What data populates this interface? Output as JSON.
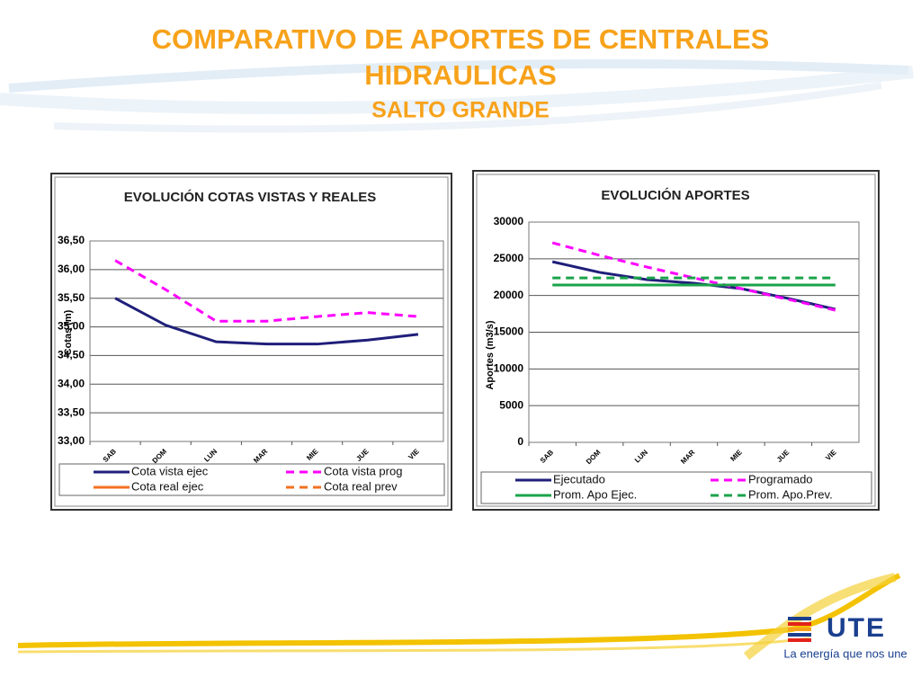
{
  "header": {
    "title_line1": "COMPARATIVO DE APORTES DE CENTRALES",
    "title_line2": "HIDRAULICAS",
    "subtitle": "SALTO GRANDE"
  },
  "chart_data": [
    {
      "type": "line",
      "title": "EVOLUCIÓN  COTAS VISTAS Y REALES",
      "y_label": "Cotas (m)",
      "categories": [
        "SAB",
        "DOM",
        "LUN",
        "MAR",
        "MIE",
        "JUE",
        "VIE"
      ],
      "ylim": [
        33,
        36.5
      ],
      "yticks": [
        {
          "value": 33,
          "label": "33,00"
        },
        {
          "value": 33.5,
          "label": "33,50"
        },
        {
          "value": 34,
          "label": "34,00"
        },
        {
          "value": 34.5,
          "label": "34,50"
        },
        {
          "value": 35,
          "label": "35,00"
        },
        {
          "value": 35.5,
          "label": "35,50"
        },
        {
          "value": 36,
          "label": "36,00"
        },
        {
          "value": 36.5,
          "label": "36,50"
        }
      ],
      "grid": true,
      "series": [
        {
          "name": "Cota vista ejec",
          "color": "#1f1f7a",
          "dashed": false,
          "values": [
            35.5,
            35.03,
            34.74,
            34.7,
            34.7,
            34.77,
            34.87
          ]
        },
        {
          "name": "Cota vista prog",
          "color": "#ff00ff",
          "dashed": true,
          "values": [
            36.16,
            35.65,
            35.1,
            35.1,
            35.18,
            35.25,
            35.18
          ]
        },
        {
          "name": "Cota real ejec",
          "color": "#f37021",
          "dashed": false,
          "values": [
            null,
            null,
            null,
            null,
            null,
            null,
            null
          ]
        },
        {
          "name": "Cota real prev",
          "color": "#f37021",
          "dashed": true,
          "values": [
            null,
            null,
            null,
            null,
            null,
            null,
            null
          ]
        }
      ]
    },
    {
      "type": "line",
      "title": "EVOLUCIÓN  APORTES",
      "y_label": "Aportes (m3/s)",
      "categories": [
        "SAB",
        "DOM",
        "LUN",
        "MAR",
        "MIE",
        "JUE",
        "VIE"
      ],
      "ylim": [
        0,
        30000
      ],
      "yticks": [
        0,
        5000,
        10000,
        15000,
        20000,
        25000,
        30000
      ],
      "grid": true,
      "series": [
        {
          "name": "Ejecutado",
          "color": "#1f1f7a",
          "dashed": false,
          "values": [
            24600,
            23150,
            22160,
            21670,
            20940,
            19600,
            18120
          ]
        },
        {
          "name": "Programado",
          "color": "#ff00ff",
          "dashed": true,
          "values": [
            27180,
            25470,
            23880,
            22400,
            20940,
            19470,
            18000
          ]
        },
        {
          "name": "Prom. Apo Ejec.",
          "color": "#1aa34a",
          "dashed": false,
          "values": [
            21430,
            21430,
            21430,
            21430,
            21430,
            21430,
            21430
          ]
        },
        {
          "name": "Prom. Apo.Prev.",
          "color": "#1aa34a",
          "dashed": true,
          "values": [
            22400,
            22400,
            22400,
            22400,
            22400,
            22400,
            22400
          ]
        }
      ]
    }
  ],
  "footer": {
    "logo": "UTE",
    "tagline": "La energía que nos une"
  }
}
